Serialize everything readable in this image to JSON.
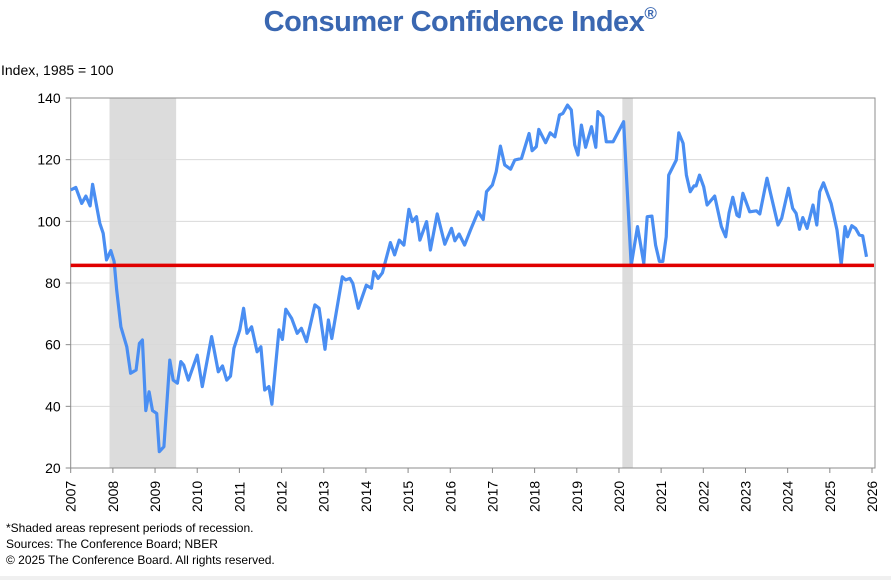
{
  "title": "Consumer Confidence Index",
  "title_mark": "®",
  "footnotes": {
    "note": "*Shaded areas represent periods of recession.",
    "sources": "Sources:  The Conference Board;  NBER",
    "copyright": "© 2025 The Conference Board. All rights reserved."
  },
  "chart_data": {
    "type": "line",
    "title": "Consumer Confidence Index®",
    "ylabel": "Index, 1985 = 100",
    "xlabel": "",
    "xlim": [
      2007,
      2026
    ],
    "ylim": [
      20,
      140
    ],
    "yticks": [
      20,
      40,
      60,
      80,
      100,
      120,
      140
    ],
    "xticks": [
      "2007",
      "2008",
      "2009",
      "2010",
      "2011",
      "2012",
      "2013",
      "2014",
      "2015",
      "2016",
      "2017",
      "2018",
      "2019",
      "2020",
      "2021",
      "2022",
      "2023",
      "2024",
      "2025",
      "2026"
    ],
    "grid": "horizontal",
    "colors": {
      "series": "#4a8ef2",
      "reference_line": "#e00000",
      "recession": "#dcdcdc",
      "title": "#3a67b1"
    },
    "recessions": [
      [
        2007.92,
        2009.5
      ],
      [
        2020.08,
        2020.33
      ]
    ],
    "reference_line": 85.7,
    "series": [
      {
        "x": [
          2007.0,
          2007.12,
          2007.26,
          2007.36,
          2007.46,
          2007.52,
          2007.69,
          2007.77,
          2007.85,
          2007.95,
          2008.03,
          2008.09,
          2008.19,
          2008.33,
          2008.42,
          2008.55,
          2008.63,
          2008.7,
          2008.78,
          2008.86,
          2008.94,
          2009.04,
          2009.1,
          2009.21,
          2009.35,
          2009.43,
          2009.53,
          2009.61,
          2009.68,
          2009.79,
          2010.0,
          2010.12,
          2010.34,
          2010.5,
          2010.6,
          2010.7,
          2010.79,
          2010.87,
          2011.01,
          2011.1,
          2011.18,
          2011.29,
          2011.42,
          2011.51,
          2011.6,
          2011.7,
          2011.77,
          2011.94,
          2012.02,
          2012.1,
          2012.24,
          2012.37,
          2012.47,
          2012.59,
          2012.79,
          2012.89,
          2013.03,
          2013.11,
          2013.19,
          2013.44,
          2013.52,
          2013.62,
          2013.69,
          2013.82,
          2014.01,
          2014.13,
          2014.19,
          2014.29,
          2014.39,
          2014.58,
          2014.68,
          2014.79,
          2014.9,
          2015.02,
          2015.1,
          2015.2,
          2015.28,
          2015.44,
          2015.53,
          2015.69,
          2015.87,
          2016.03,
          2016.11,
          2016.21,
          2016.34,
          2016.48,
          2016.66,
          2016.78,
          2016.86,
          2017.0,
          2017.09,
          2017.19,
          2017.29,
          2017.43,
          2017.53,
          2017.69,
          2017.87,
          2017.94,
          2018.04,
          2018.1,
          2018.26,
          2018.37,
          2018.48,
          2018.59,
          2018.67,
          2018.78,
          2018.87,
          2018.95,
          2019.03,
          2019.11,
          2019.21,
          2019.35,
          2019.45,
          2019.5,
          2019.62,
          2019.7,
          2019.86,
          2020.11,
          2020.29,
          2020.44,
          2020.59,
          2020.67,
          2020.78,
          2020.87,
          2020.96,
          2021.04,
          2021.12,
          2021.18,
          2021.36,
          2021.42,
          2021.52,
          2021.6,
          2021.69,
          2021.78,
          2021.83,
          2021.91,
          2022.01,
          2022.09,
          2022.27,
          2022.43,
          2022.53,
          2022.61,
          2022.7,
          2022.8,
          2022.85,
          2022.94,
          2023.1,
          2023.26,
          2023.34,
          2023.51,
          2023.61,
          2023.77,
          2023.86,
          2024.02,
          2024.12,
          2024.2,
          2024.28,
          2024.36,
          2024.46,
          2024.6,
          2024.69,
          2024.76,
          2024.85,
          2025.03,
          2025.17,
          2025.27,
          2025.36,
          2025.42,
          2025.52,
          2025.61,
          2025.7,
          2025.78,
          2025.87
        ],
        "y": [
          110.2,
          111,
          105.8,
          108.2,
          105,
          112,
          99.4,
          96.1,
          87.5,
          90.5,
          87,
          77.7,
          65.8,
          59.3,
          50.7,
          51.8,
          60.4,
          61.5,
          38.6,
          44.7,
          38.6,
          37.7,
          25.3,
          26.9,
          55,
          48.5,
          47.5,
          54.5,
          53.4,
          48.5,
          56.6,
          46.4,
          62.6,
          51.2,
          53.1,
          48.5,
          49.8,
          58.8,
          64.8,
          71.8,
          63.7,
          65.8,
          57.7,
          59.3,
          45.3,
          46.4,
          40.7,
          64.8,
          61.7,
          71.5,
          68.5,
          63.7,
          65.3,
          61,
          72.9,
          71.8,
          58.5,
          68,
          62,
          82,
          81,
          81.5,
          79.9,
          71.8,
          79.3,
          78.3,
          83.7,
          81.5,
          83.3,
          93.1,
          89.1,
          93.9,
          92.3,
          103.9,
          99.9,
          101.5,
          93.9,
          99.9,
          90.7,
          102.4,
          92.6,
          97.7,
          93.7,
          95.9,
          92.3,
          97.2,
          103.1,
          100.6,
          109.6,
          111.8,
          116.1,
          124.4,
          118.3,
          116.9,
          119.9,
          120.4,
          128.5,
          122.9,
          124.2,
          129.8,
          125.5,
          128.7,
          127.4,
          134.5,
          135,
          137.7,
          136.1,
          124.8,
          121.5,
          131.2,
          124,
          130.7,
          124,
          135.6,
          133.9,
          125.8,
          125.8,
          132.3,
          85.7,
          98.3,
          86.4,
          101.5,
          101.7,
          92.3,
          87,
          87,
          95,
          115,
          119.9,
          128.7,
          125.3,
          115,
          109.6,
          111.5,
          111.5,
          115,
          111.2,
          105.3,
          108.2,
          98.3,
          95,
          102.6,
          107.8,
          102,
          101.5,
          109.1,
          103.1,
          103.4,
          102.4,
          114,
          108.2,
          98.8,
          101,
          110.7,
          104.2,
          102.6,
          97.4,
          101.2,
          97.7,
          105.3,
          98.8,
          109.6,
          112.5,
          105.8,
          97.2,
          86.0,
          98.3,
          95,
          98.6,
          97.7,
          95.6,
          95.3,
          88.5
        ]
      }
    ]
  }
}
